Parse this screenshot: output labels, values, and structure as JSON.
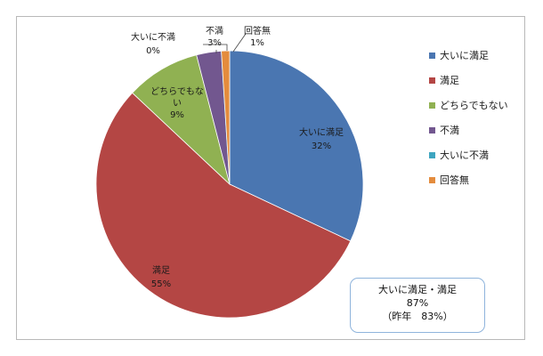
{
  "chart_data": {
    "type": "pie",
    "slices": [
      {
        "label": "大いに満足",
        "value": 32,
        "value_label": "32%",
        "color": "#4a76b1"
      },
      {
        "label": "満足",
        "value": 55,
        "value_label": "55%",
        "color": "#b44644"
      },
      {
        "label": "どちらでもない",
        "value": 9,
        "value_label": "9%",
        "color": "#90b152"
      },
      {
        "label": "不満",
        "value": 3,
        "value_label": "3%",
        "color": "#72578f"
      },
      {
        "label": "大いに不満",
        "value": 0,
        "value_label": "0%",
        "color": "#3ea5c0"
      },
      {
        "label": "回答無",
        "value": 1,
        "value_label": "1%",
        "color": "#e48c3d"
      }
    ],
    "legend_position": "right",
    "start": "top",
    "direction": "clockwise"
  },
  "annotation": {
    "line1": "大いに満足・満足",
    "line2": "87%",
    "line3": "（昨年　83%）"
  }
}
